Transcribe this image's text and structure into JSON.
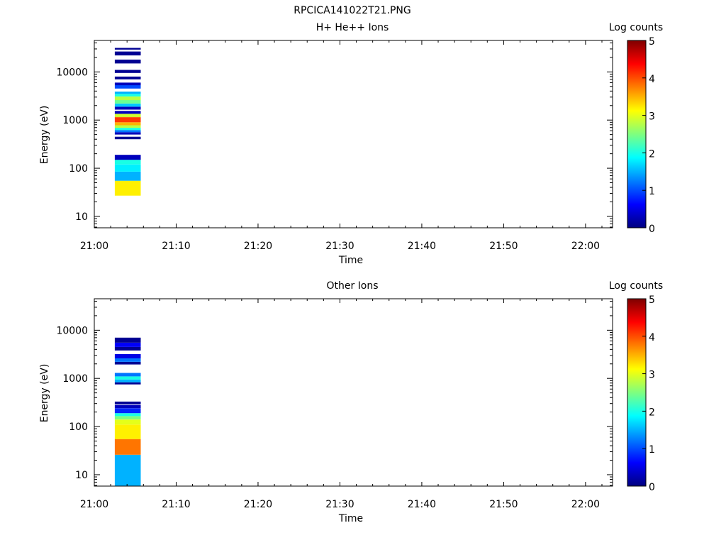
{
  "figure_title": "RPCICA141022T21.PNG",
  "colors": {
    "colormap": [
      "#00007f",
      "#0000ff",
      "#007fff",
      "#00ffff",
      "#7fff7f",
      "#ffff00",
      "#ff7f00",
      "#ff0000",
      "#7f0000"
    ]
  },
  "chart_data": [
    {
      "type": "heatmap",
      "title": "H+ He++ Ions",
      "xlabel": "Time",
      "ylabel": "Energy (eV)",
      "x_ticks": [
        "21:00",
        "21:10",
        "21:20",
        "21:30",
        "21:40",
        "21:50",
        "22:00"
      ],
      "y_ticks": [
        "10",
        "100",
        "1000",
        "10000"
      ],
      "y_scale": "log",
      "ylim": [
        5.8,
        45000
      ],
      "colorbar": {
        "label": "Log counts",
        "ticks": [
          "0",
          "1",
          "2",
          "3",
          "4",
          "5"
        ],
        "range": [
          0,
          5
        ]
      },
      "column": {
        "start": "21:02:30",
        "end": "21:05:40"
      },
      "cells": [
        {
          "e_low": 27,
          "e_high": 55,
          "log_counts": 3.2
        },
        {
          "e_low": 55,
          "e_high": 85,
          "log_counts": 1.5
        },
        {
          "e_low": 85,
          "e_high": 120,
          "log_counts": 1.8
        },
        {
          "e_low": 120,
          "e_high": 150,
          "log_counts": 2.0
        },
        {
          "e_low": 150,
          "e_high": 190,
          "log_counts": 0.3
        },
        {
          "e_low": 400,
          "e_high": 450,
          "log_counts": 0.1
        },
        {
          "e_low": 500,
          "e_high": 560,
          "log_counts": 0.3
        },
        {
          "e_low": 560,
          "e_high": 620,
          "log_counts": 1.2
        },
        {
          "e_low": 620,
          "e_high": 690,
          "log_counts": 2.0
        },
        {
          "e_low": 690,
          "e_high": 780,
          "log_counts": 2.8
        },
        {
          "e_low": 780,
          "e_high": 900,
          "log_counts": 3.5
        },
        {
          "e_low": 900,
          "e_high": 1150,
          "log_counts": 4.1
        },
        {
          "e_low": 1150,
          "e_high": 1350,
          "log_counts": 2.9
        },
        {
          "e_low": 1350,
          "e_high": 1550,
          "log_counts": 0.3
        },
        {
          "e_low": 1650,
          "e_high": 1900,
          "log_counts": 0.3
        },
        {
          "e_low": 1900,
          "e_high": 2200,
          "log_counts": 1.6
        },
        {
          "e_low": 2200,
          "e_high": 2600,
          "log_counts": 2.4
        },
        {
          "e_low": 2600,
          "e_high": 3100,
          "log_counts": 2.8
        },
        {
          "e_low": 3100,
          "e_high": 3500,
          "log_counts": 2.0
        },
        {
          "e_low": 3500,
          "e_high": 3900,
          "log_counts": 1.5
        },
        {
          "e_low": 4500,
          "e_high": 5300,
          "log_counts": 1.0
        },
        {
          "e_low": 5300,
          "e_high": 6000,
          "log_counts": 0.3
        },
        {
          "e_low": 7000,
          "e_high": 8000,
          "log_counts": 0.1
        },
        {
          "e_low": 9500,
          "e_high": 11000,
          "log_counts": 0.1
        },
        {
          "e_low": 15000,
          "e_high": 18000,
          "log_counts": 0.1
        },
        {
          "e_low": 22000,
          "e_high": 26500,
          "log_counts": 0.1
        },
        {
          "e_low": 29000,
          "e_high": 31500,
          "log_counts": 0.1
        }
      ]
    },
    {
      "type": "heatmap",
      "title": "Other Ions",
      "xlabel": "Time",
      "ylabel": "Energy (eV)",
      "x_ticks": [
        "21:00",
        "21:10",
        "21:20",
        "21:30",
        "21:40",
        "21:50",
        "22:00"
      ],
      "y_ticks": [
        "10",
        "100",
        "1000",
        "10000"
      ],
      "y_scale": "log",
      "ylim": [
        5.8,
        45000
      ],
      "colorbar": {
        "label": "Log counts",
        "ticks": [
          "0",
          "1",
          "2",
          "3",
          "4",
          "5"
        ],
        "range": [
          0,
          5
        ]
      },
      "column": {
        "start": "21:02:30",
        "end": "21:05:40"
      },
      "cells": [
        {
          "e_low": 5.8,
          "e_high": 26,
          "log_counts": 1.5
        },
        {
          "e_low": 26,
          "e_high": 55,
          "log_counts": 3.8
        },
        {
          "e_low": 55,
          "e_high": 110,
          "log_counts": 3.2
        },
        {
          "e_low": 110,
          "e_high": 140,
          "log_counts": 3.0
        },
        {
          "e_low": 140,
          "e_high": 165,
          "log_counts": 2.5
        },
        {
          "e_low": 165,
          "e_high": 190,
          "log_counts": 2.0
        },
        {
          "e_low": 190,
          "e_high": 240,
          "log_counts": 0.8
        },
        {
          "e_low": 240,
          "e_high": 280,
          "log_counts": 0.3
        },
        {
          "e_low": 290,
          "e_high": 330,
          "log_counts": 0.1
        },
        {
          "e_low": 750,
          "e_high": 830,
          "log_counts": 0.1
        },
        {
          "e_low": 830,
          "e_high": 950,
          "log_counts": 1.5
        },
        {
          "e_low": 950,
          "e_high": 1100,
          "log_counts": 2.0
        },
        {
          "e_low": 1100,
          "e_high": 1300,
          "log_counts": 1.2
        },
        {
          "e_low": 1950,
          "e_high": 2200,
          "log_counts": 0.1
        },
        {
          "e_low": 2200,
          "e_high": 2600,
          "log_counts": 1.2
        },
        {
          "e_low": 2600,
          "e_high": 3200,
          "log_counts": 0.5
        },
        {
          "e_low": 3800,
          "e_high": 4500,
          "log_counts": 0.1
        },
        {
          "e_low": 4500,
          "e_high": 5500,
          "log_counts": 0.6
        },
        {
          "e_low": 5500,
          "e_high": 7000,
          "log_counts": 0.1
        }
      ]
    }
  ]
}
